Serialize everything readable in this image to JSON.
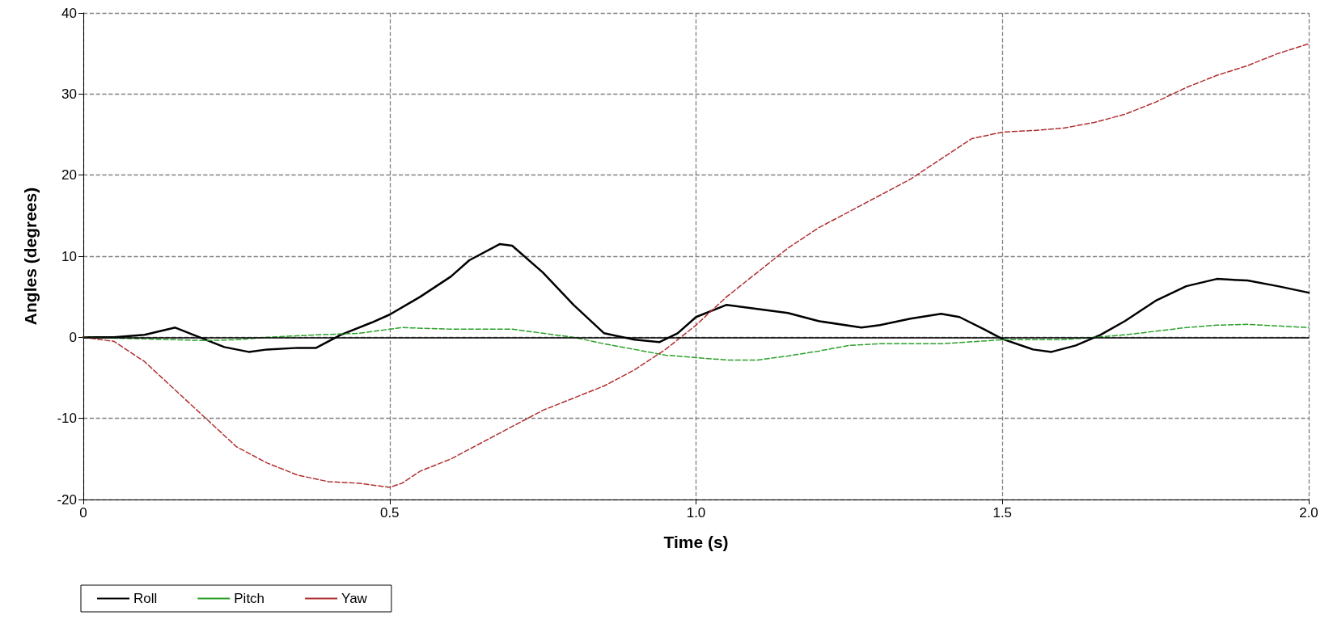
{
  "chart_data": {
    "type": "line",
    "xlabel": "Time (s)",
    "ylabel": "Angles (degrees)",
    "xlim": [
      0,
      2
    ],
    "xticks": [
      0,
      0.5,
      {
        "value": 1,
        "label": "1.0"
      },
      1.5,
      {
        "value": 2,
        "label": "2.0"
      }
    ],
    "ylim": [
      -20,
      40
    ],
    "yticks": [
      -20,
      -10,
      0,
      10,
      20,
      30,
      40
    ],
    "grid": true,
    "legend": "bottom left",
    "marker": "none",
    "ref_lines": [
      {
        "axis": "y",
        "value": 0,
        "color": "#000000",
        "line_style": "solid"
      }
    ],
    "series": [
      {
        "name": "Roll",
        "color": "#000000",
        "line_style": "solid",
        "x": [
          0,
          0.05,
          0.1,
          0.15,
          0.2,
          0.23,
          0.27,
          0.3,
          0.35,
          0.38,
          0.42,
          0.47,
          0.5,
          0.55,
          0.6,
          0.63,
          0.68,
          0.7,
          0.75,
          0.8,
          0.85,
          0.9,
          0.94,
          0.97,
          1.0,
          1.05,
          1.1,
          1.15,
          1.2,
          1.27,
          1.3,
          1.35,
          1.4,
          1.43,
          1.47,
          1.5,
          1.55,
          1.58,
          1.62,
          1.66,
          1.7,
          1.75,
          1.8,
          1.85,
          1.9,
          1.95,
          2.0
        ],
        "values": [
          0,
          0,
          0.3,
          1.2,
          -0.3,
          -1.2,
          -1.8,
          -1.5,
          -1.3,
          -1.3,
          0.3,
          1.8,
          2.8,
          5,
          7.5,
          9.5,
          11.5,
          11.3,
          8,
          4,
          0.5,
          -0.3,
          -0.6,
          0.5,
          2.5,
          4,
          3.5,
          3,
          2,
          1.2,
          1.5,
          2.3,
          2.9,
          2.5,
          1,
          -0.2,
          -1.5,
          -1.8,
          -1,
          0.3,
          2,
          4.5,
          6.3,
          7.2,
          7,
          6.3,
          5.5
        ]
      },
      {
        "name": "Pitch",
        "color": "#2ca02c",
        "line_style": "dashed",
        "x": [
          0,
          0.1,
          0.2,
          0.25,
          0.3,
          0.38,
          0.45,
          0.5,
          0.52,
          0.6,
          0.7,
          0.75,
          0.8,
          0.85,
          0.9,
          0.95,
          1.0,
          1.05,
          1.1,
          1.15,
          1.2,
          1.25,
          1.3,
          1.4,
          1.5,
          1.6,
          1.7,
          1.8,
          1.85,
          1.9,
          2.0
        ],
        "values": [
          0,
          -0.2,
          -0.4,
          -0.3,
          0,
          0.3,
          0.5,
          1,
          1.2,
          1,
          1,
          0.5,
          0,
          -0.8,
          -1.5,
          -2.2,
          -2.5,
          -2.8,
          -2.8,
          -2.3,
          -1.7,
          -1,
          -0.8,
          -0.8,
          -0.3,
          -0.3,
          0.3,
          1.2,
          1.5,
          1.6,
          1.2
        ]
      },
      {
        "name": "Yaw",
        "color": "#b03030",
        "line_style": "dashed",
        "x": [
          0,
          0.05,
          0.1,
          0.15,
          0.2,
          0.25,
          0.3,
          0.35,
          0.4,
          0.45,
          0.5,
          0.52,
          0.55,
          0.6,
          0.65,
          0.7,
          0.75,
          0.8,
          0.85,
          0.9,
          0.95,
          1.0,
          1.05,
          1.1,
          1.15,
          1.2,
          1.25,
          1.3,
          1.35,
          1.4,
          1.45,
          1.5,
          1.55,
          1.6,
          1.65,
          1.7,
          1.75,
          1.8,
          1.85,
          1.9,
          1.95,
          2.0
        ],
        "values": [
          0,
          -0.5,
          -3,
          -6.5,
          -10,
          -13.5,
          -15.5,
          -17,
          -17.8,
          -18,
          -18.5,
          -18,
          -16.5,
          -15,
          -13,
          -11,
          -9,
          -7.5,
          -6,
          -4,
          -1.5,
          1.5,
          5,
          8,
          11,
          13.5,
          15.5,
          17.5,
          19.5,
          22,
          24.5,
          25.3,
          25.5,
          25.8,
          26.5,
          27.5,
          29,
          30.8,
          32.3,
          33.5,
          35,
          36.2
        ]
      }
    ]
  }
}
